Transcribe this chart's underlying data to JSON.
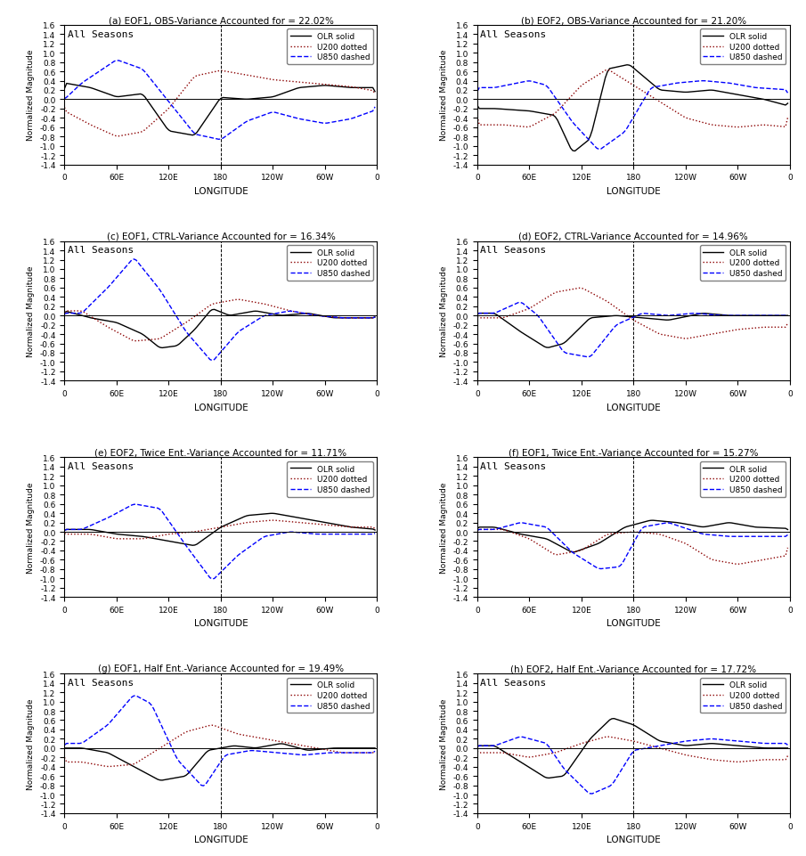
{
  "titles": [
    "(a) EOF1, OBS-Variance Accounted for = 22.02%",
    "(b) EOF2, OBS-Variance Accounted for = 21.20%",
    "(c) EOF1, CTRL-Variance Accounted for = 16.34%",
    "(d) EOF2, CTRL-Variance Accounted for = 14.96%",
    "(e) EOF2, Twice Ent.-Variance Accounted for = 11.71%",
    "(f) EOF1, Twice Ent.-Variance Accounted for = 15.27%",
    "(g) EOF1, Half Ent.-Variance Accounted for = 19.49%",
    "(h) EOF2, Half Ent.-Variance Accounted for = 17.72%"
  ],
  "xlabel": "LONGITUDE",
  "ylabel": "Normalized Magnitude",
  "xtick_labels": [
    "0",
    "60E",
    "120E",
    "180",
    "120W",
    "60W",
    "0"
  ],
  "ylim": [
    -1.4,
    1.6
  ],
  "yticks": [
    -1.4,
    -1.2,
    -1.0,
    -0.8,
    -0.6,
    -0.4,
    -0.2,
    0.0,
    0.2,
    0.4,
    0.6,
    0.8,
    1.0,
    1.2,
    1.4,
    1.6
  ],
  "subtitle": "All Seasons",
  "vline_x": 180,
  "olr_color": "black",
  "u200_color": "#8B0000",
  "u850_color": "blue",
  "background_color": "white",
  "figsize": [
    9.05,
    9.62
  ],
  "dpi": 100
}
